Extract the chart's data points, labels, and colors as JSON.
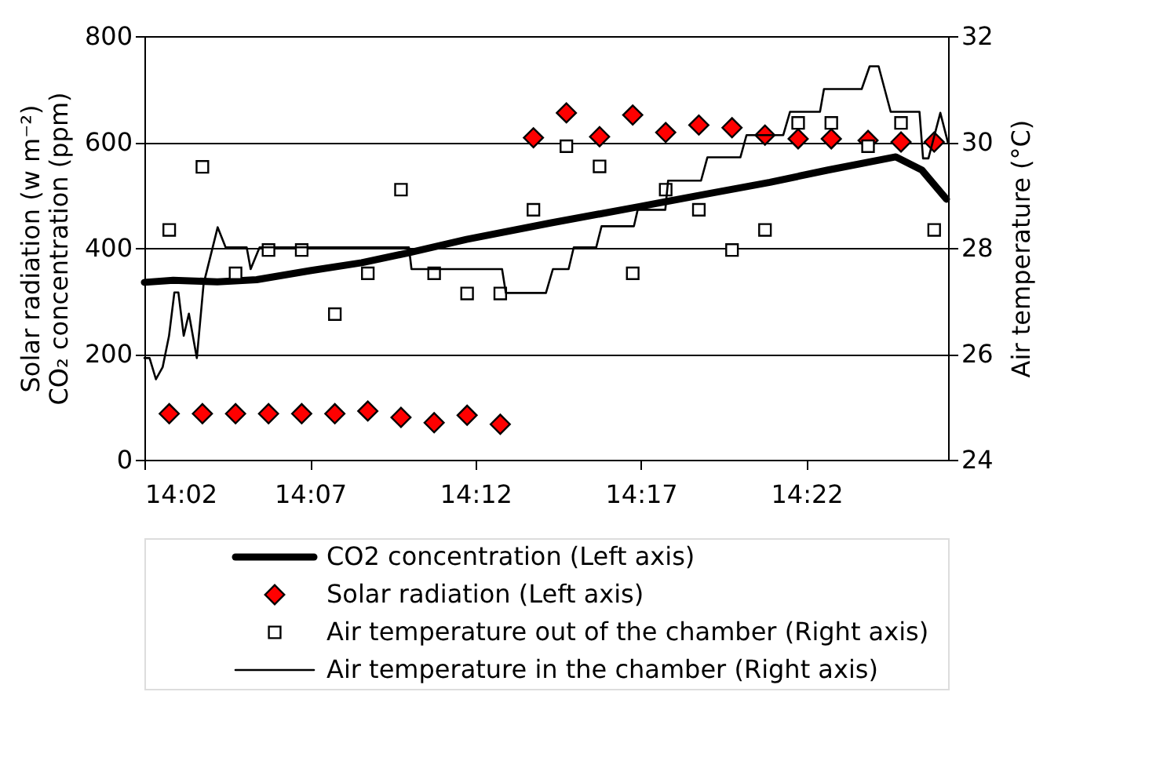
{
  "chart_data": {
    "type": "line",
    "ylabel": "Solar radiation (w m⁻²)\nCO₂ concentration (ppm)",
    "y2label": "Air temperature (°C)",
    "xlim": [
      14.0333,
      14.438
    ],
    "xticks": [
      {
        "value": 14.0333,
        "label": "14:02"
      },
      {
        "value": 14.1167,
        "label": "14:07"
      },
      {
        "value": 14.2,
        "label": "14:12"
      },
      {
        "value": 14.2833,
        "label": "14:17"
      },
      {
        "value": 14.3667,
        "label": "14:22"
      }
    ],
    "ylim": [
      0,
      800
    ],
    "yticks": [
      0,
      200,
      400,
      600,
      800
    ],
    "y2lim": [
      24,
      32
    ],
    "y2ticks": [
      24,
      26,
      28,
      30,
      32
    ],
    "grid": "y",
    "legend": "bottom",
    "series": [
      {
        "name": "CO2 concentration (Left axis)",
        "color": "#000000",
        "line_style": "solid",
        "x": [
          14.0333,
          14.0478,
          14.07,
          14.0898,
          14.1167,
          14.1427,
          14.1665,
          14.1955,
          14.2377,
          14.2825,
          14.3167,
          14.3483,
          14.3775,
          14.4117,
          14.4248,
          14.4372
        ],
        "values": [
          335,
          339,
          336,
          340,
          357,
          372,
          391,
          416,
          447,
          478,
          502,
          524,
          547,
          572,
          547,
          492
        ]
      },
      {
        "name": "Solar radiation (Left axis)",
        "color": "#ff0000",
        "type": "scatter",
        "marker": "diamond",
        "x": [
          14.0458,
          14.0625,
          14.0792,
          14.0958,
          14.1125,
          14.1292,
          14.1458,
          14.1625,
          14.1792,
          14.1958,
          14.2125,
          14.2292,
          14.2458,
          14.2625,
          14.2792,
          14.2958,
          14.3125,
          14.3292,
          14.3458,
          14.3625,
          14.3792,
          14.3977,
          14.4143,
          14.431
        ],
        "values": [
          87,
          87,
          87,
          87,
          87,
          87,
          92,
          80,
          70,
          84,
          67,
          608,
          655,
          610,
          651,
          618,
          632,
          627,
          613,
          606,
          606,
          603,
          600,
          600
        ]
      },
      {
        "name": "Air temperature out of the chamber (Right axis)",
        "color": "#ffffff",
        "type": "scatter",
        "marker": "square",
        "axis": "y2",
        "x": [
          14.0458,
          14.0625,
          14.0792,
          14.0958,
          14.1125,
          14.1292,
          14.1458,
          14.1625,
          14.1792,
          14.1958,
          14.2125,
          14.2292,
          14.2458,
          14.2625,
          14.2792,
          14.2958,
          14.3125,
          14.3292,
          14.3458,
          14.3625,
          14.3792,
          14.3977,
          14.4143,
          14.431
        ],
        "values": [
          28.34,
          29.53,
          27.52,
          27.96,
          27.96,
          26.75,
          27.52,
          29.1,
          27.52,
          27.14,
          27.14,
          28.72,
          29.92,
          29.54,
          27.52,
          29.1,
          28.72,
          27.96,
          28.34,
          30.36,
          30.36,
          29.92,
          30.36,
          28.34
        ]
      },
      {
        "name": "Air temperature in the chamber (Right axis)",
        "color": "#000000",
        "line_style": "solid",
        "axis": "y2",
        "x": [
          14.0333,
          14.0359,
          14.0391,
          14.0425,
          14.0457,
          14.0484,
          14.0504,
          14.0531,
          14.0557,
          14.0597,
          14.0631,
          14.0702,
          14.0742,
          14.0848,
          14.0868,
          14.0913,
          14.1665,
          14.1678,
          14.2134,
          14.2153,
          14.2355,
          14.239,
          14.2469,
          14.2495,
          14.2608,
          14.2635,
          14.2798,
          14.2817,
          14.2956,
          14.297,
          14.3136,
          14.3168,
          14.3334,
          14.3365,
          14.355,
          14.3584,
          14.3735,
          14.3755,
          14.3945,
          14.3985,
          14.403,
          14.4091,
          14.4236,
          14.4254,
          14.4281,
          14.4341,
          14.438
        ],
        "values": [
          25.92,
          25.92,
          25.52,
          25.75,
          26.34,
          27.16,
          27.16,
          26.34,
          26.76,
          25.92,
          27.32,
          28.39,
          28.01,
          28.01,
          27.6,
          28.01,
          28.01,
          27.6,
          27.6,
          27.15,
          27.15,
          27.6,
          27.6,
          28.01,
          28.01,
          28.41,
          28.41,
          28.72,
          28.72,
          29.27,
          29.27,
          29.71,
          29.71,
          30.13,
          30.13,
          30.57,
          30.57,
          31.0,
          31.0,
          31.43,
          31.43,
          30.57,
          30.57,
          29.69,
          29.69,
          30.55,
          29.98
        ]
      }
    ]
  }
}
